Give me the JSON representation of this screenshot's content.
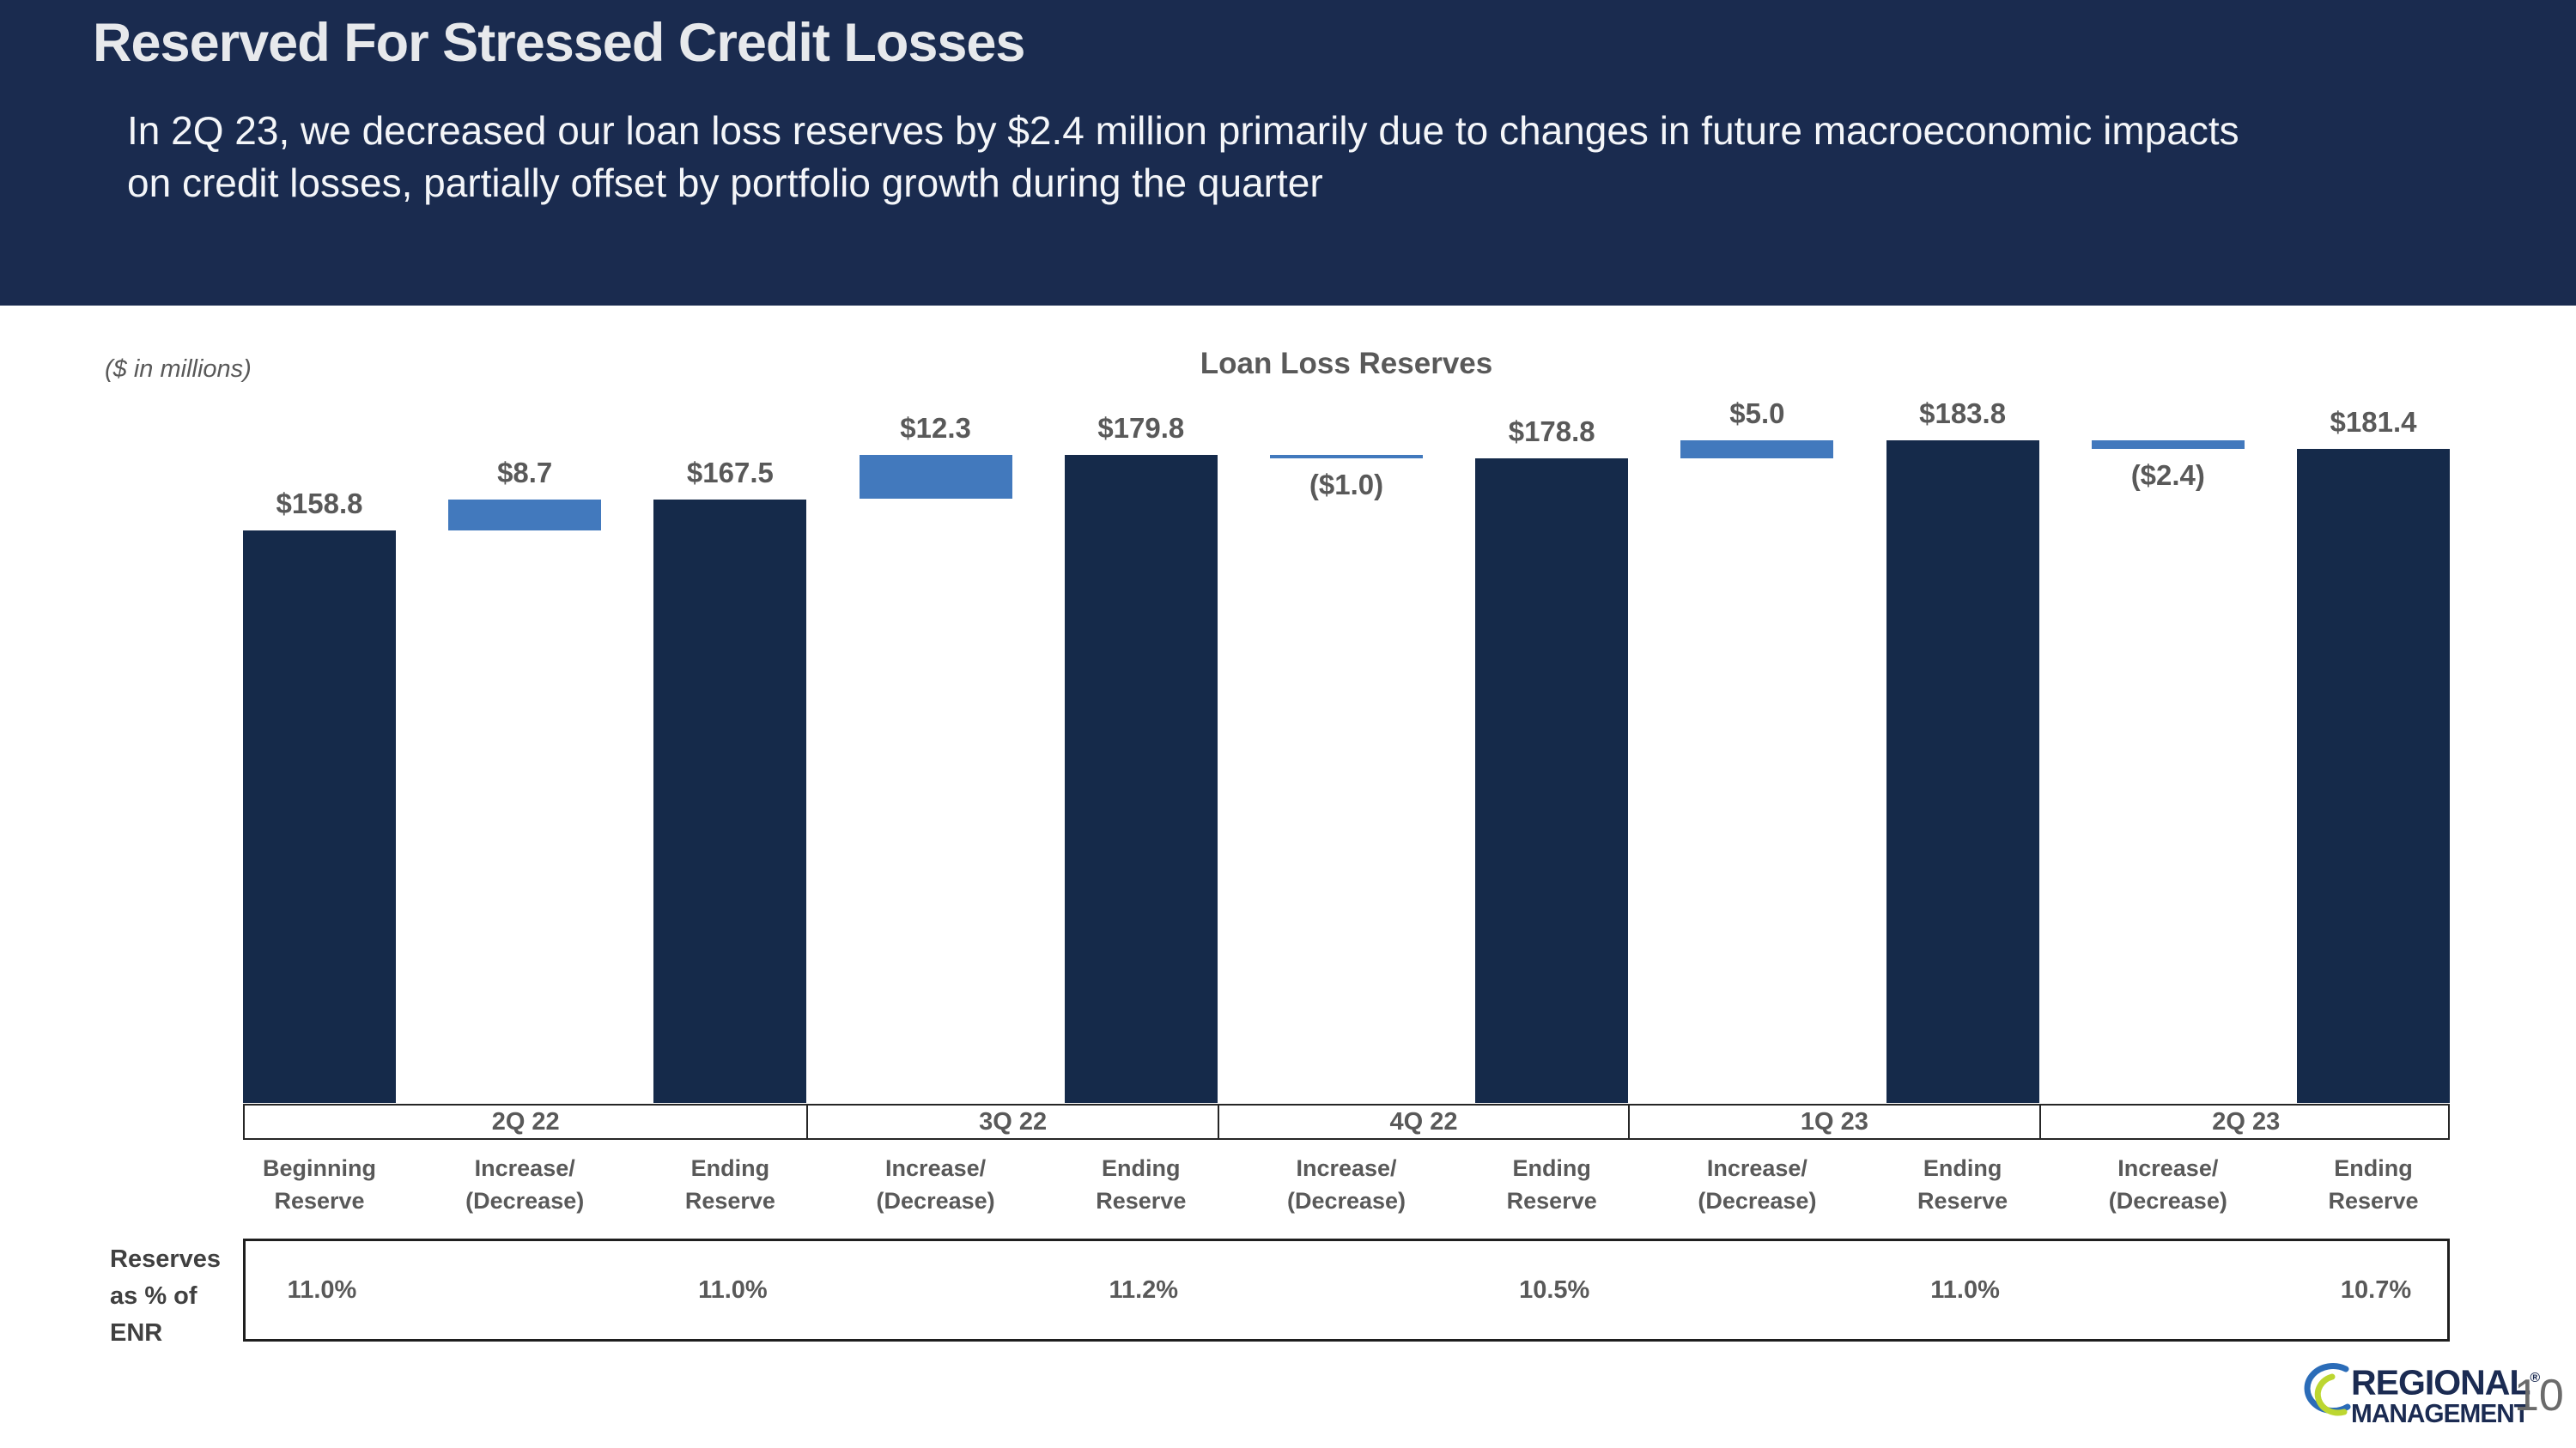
{
  "slide": {
    "title": "Reserved For Stressed Credit Losses",
    "subtitle_line1": "In 2Q 23, we decreased our loan loss reserves by $2.4 million primarily due to changes in future macroeconomic impacts",
    "subtitle_line2": "on credit losses, partially offset by portfolio growth during the quarter",
    "units_note": "($ in millions)",
    "page_number": "10"
  },
  "logo": {
    "line1": "REGIONAL",
    "registered": "®",
    "line2": "MANAGEMENT"
  },
  "chart_data": {
    "type": "bar",
    "subtype": "waterfall",
    "title": "Loan Loss Reserves",
    "units": "$ in millions",
    "ylim": [
      0,
      190
    ],
    "grid": false,
    "legend": null,
    "colors": {
      "total_bar": "#152A4A",
      "delta_bar": "#4279BD"
    },
    "groups": [
      {
        "label": "2Q 22",
        "span_columns": 3
      },
      {
        "label": "3Q 22",
        "span_columns": 2
      },
      {
        "label": "4Q 22",
        "span_columns": 2
      },
      {
        "label": "1Q 23",
        "span_columns": 2
      },
      {
        "label": "2Q 23",
        "span_columns": 2
      }
    ],
    "columns": [
      {
        "category": "Beginning Reserve",
        "cat_line1": "Beginning",
        "cat_line2": "Reserve",
        "kind": "total",
        "value": 158.8,
        "label": "$158.8",
        "reserves_pct_of_enr": "11.0%"
      },
      {
        "category": "Increase/(Decrease)",
        "cat_line1": "Increase/",
        "cat_line2": "(Decrease)",
        "kind": "delta",
        "value": 8.7,
        "from": 158.8,
        "to": 167.5,
        "label": "$8.7"
      },
      {
        "category": "Ending Reserve",
        "cat_line1": "Ending",
        "cat_line2": "Reserve",
        "kind": "total",
        "value": 167.5,
        "label": "$167.5",
        "reserves_pct_of_enr": "11.0%"
      },
      {
        "category": "Increase/(Decrease)",
        "cat_line1": "Increase/",
        "cat_line2": "(Decrease)",
        "kind": "delta",
        "value": 12.3,
        "from": 167.5,
        "to": 179.8,
        "label": "$12.3"
      },
      {
        "category": "Ending Reserve",
        "cat_line1": "Ending",
        "cat_line2": "Reserve",
        "kind": "total",
        "value": 179.8,
        "label": "$179.8",
        "reserves_pct_of_enr": "11.2%"
      },
      {
        "category": "Increase/(Decrease)",
        "cat_line1": "Increase/",
        "cat_line2": "(Decrease)",
        "kind": "delta",
        "value": -1.0,
        "from": 179.8,
        "to": 178.8,
        "label": "($1.0)"
      },
      {
        "category": "Ending Reserve",
        "cat_line1": "Ending",
        "cat_line2": "Reserve",
        "kind": "total",
        "value": 178.8,
        "label": "$178.8",
        "reserves_pct_of_enr": "10.5%"
      },
      {
        "category": "Increase/(Decrease)",
        "cat_line1": "Increase/",
        "cat_line2": "(Decrease)",
        "kind": "delta",
        "value": 5.0,
        "from": 178.8,
        "to": 183.8,
        "label": "$5.0"
      },
      {
        "category": "Ending Reserve",
        "cat_line1": "Ending",
        "cat_line2": "Reserve",
        "kind": "total",
        "value": 183.8,
        "label": "$183.8",
        "reserves_pct_of_enr": "11.0%"
      },
      {
        "category": "Increase/(Decrease)",
        "cat_line1": "Increase/",
        "cat_line2": "(Decrease)",
        "kind": "delta",
        "value": -2.4,
        "from": 183.8,
        "to": 181.4,
        "label": "($2.4)"
      },
      {
        "category": "Ending Reserve",
        "cat_line1": "Ending",
        "cat_line2": "Reserve",
        "kind": "total",
        "value": 181.4,
        "label": "$181.4",
        "reserves_pct_of_enr": "10.7%"
      }
    ],
    "row_label": {
      "line1": "Reserves",
      "line2": "as % of",
      "line3": "ENR"
    }
  }
}
